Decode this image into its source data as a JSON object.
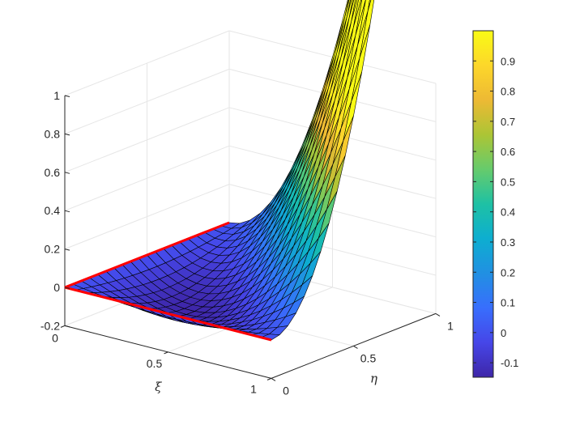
{
  "chart_data": {
    "type": "surface",
    "title": "",
    "xlabel": "ξ",
    "ylabel": "η",
    "zlabel": "",
    "surface": {
      "description_formula": "z = 4*xi*eta*(xi+eta-1) evaluated over the unit square",
      "x_range": [
        0,
        1
      ],
      "y_range": [
        0,
        1
      ],
      "grid_divisions": 20,
      "z_min": -0.148,
      "z_max": 1.0
    },
    "axes": {
      "xlim": [
        0,
        1
      ],
      "ylim": [
        0,
        1
      ],
      "zlim": [
        -0.2,
        1
      ],
      "x_ticks": [
        "0",
        "0.5",
        "1"
      ],
      "y_ticks": [
        "0",
        "0.5",
        "1"
      ],
      "z_ticks": [
        "-0.2",
        "0",
        "0.2",
        "0.4",
        "0.6",
        "0.8",
        "1"
      ]
    },
    "colorbar": {
      "colormap": "parula",
      "range": [
        -0.148,
        1.0
      ],
      "ticks": [
        "-0.1",
        "0",
        "0.1",
        "0.2",
        "0.3",
        "0.4",
        "0.5",
        "0.6",
        "0.7",
        "0.8",
        "0.9"
      ]
    },
    "highlight_edges": {
      "color": "#ff0000",
      "edges": [
        "eta = 0",
        "xi = 0"
      ]
    },
    "grid": true
  }
}
